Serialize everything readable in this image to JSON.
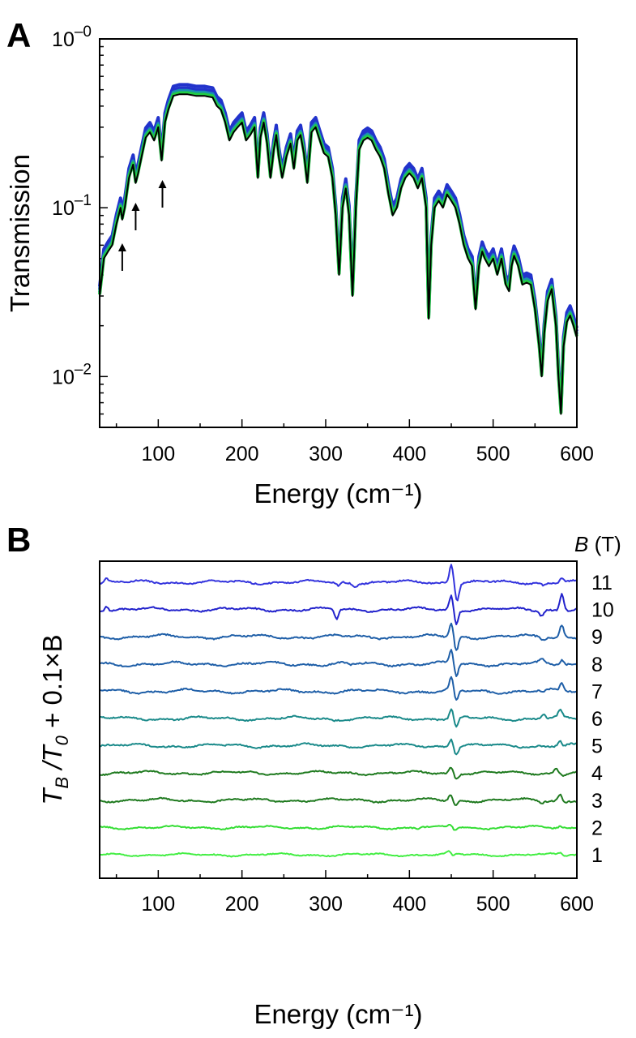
{
  "panels": {
    "a": {
      "letter": "A"
    },
    "b": {
      "letter": "B"
    }
  },
  "chart_data": [
    {
      "type": "line",
      "panel": "A",
      "xlabel": "Energy (cm⁻¹)",
      "ylabel": "Transmission",
      "xlim": [
        30,
        600
      ],
      "ylim": [
        0.005,
        1
      ],
      "yscale": "log",
      "xticks": [
        100,
        200,
        300,
        400,
        500,
        600
      ],
      "yticks": [
        {
          "base": "10",
          "exp": "–2",
          "value": 0.01
        },
        {
          "base": "10",
          "exp": "–1",
          "value": 0.1
        },
        {
          "base": "10",
          "exp": "–0",
          "value": 1
        }
      ],
      "grid": false,
      "band_colors": {
        "top": "#2233cc",
        "middle": "#1a8fb0",
        "lower": "#22cc44",
        "bottom": "#000000"
      },
      "arrows_at_x": [
        57,
        73,
        105
      ],
      "x": [
        30,
        35,
        40,
        45,
        50,
        55,
        57,
        60,
        65,
        70,
        73,
        76,
        80,
        85,
        90,
        95,
        100,
        104,
        108,
        112,
        118,
        125,
        135,
        145,
        155,
        165,
        170,
        175,
        180,
        185,
        190,
        195,
        200,
        205,
        210,
        215,
        219,
        222,
        226,
        230,
        234,
        238,
        241,
        244,
        248,
        253,
        258,
        262,
        266,
        270,
        274,
        278,
        283,
        288,
        293,
        298,
        303,
        308,
        312,
        316,
        320,
        324,
        328,
        332,
        336,
        340,
        345,
        350,
        355,
        360,
        365,
        370,
        375,
        380,
        385,
        390,
        395,
        400,
        405,
        410,
        415,
        420,
        423,
        426,
        430,
        435,
        440,
        445,
        450,
        455,
        460,
        465,
        470,
        475,
        479,
        483,
        487,
        490,
        495,
        500,
        505,
        510,
        515,
        519,
        522,
        525,
        530,
        535,
        540,
        545,
        550,
        555,
        558,
        561,
        565,
        570,
        575,
        578,
        581,
        584,
        588,
        592,
        596,
        600
      ],
      "y": [
        0.03,
        0.05,
        0.055,
        0.06,
        0.08,
        0.1,
        0.085,
        0.1,
        0.15,
        0.18,
        0.14,
        0.16,
        0.2,
        0.26,
        0.28,
        0.25,
        0.3,
        0.19,
        0.32,
        0.38,
        0.46,
        0.47,
        0.47,
        0.46,
        0.46,
        0.45,
        0.4,
        0.38,
        0.32,
        0.25,
        0.28,
        0.3,
        0.32,
        0.25,
        0.27,
        0.3,
        0.15,
        0.26,
        0.32,
        0.24,
        0.15,
        0.22,
        0.27,
        0.2,
        0.15,
        0.2,
        0.24,
        0.17,
        0.25,
        0.27,
        0.21,
        0.14,
        0.28,
        0.3,
        0.25,
        0.21,
        0.2,
        0.15,
        0.09,
        0.04,
        0.1,
        0.13,
        0.09,
        0.03,
        0.1,
        0.22,
        0.25,
        0.26,
        0.25,
        0.22,
        0.2,
        0.17,
        0.12,
        0.09,
        0.1,
        0.13,
        0.15,
        0.16,
        0.15,
        0.13,
        0.15,
        0.1,
        0.022,
        0.06,
        0.1,
        0.11,
        0.1,
        0.12,
        0.11,
        0.1,
        0.08,
        0.06,
        0.05,
        0.045,
        0.025,
        0.045,
        0.055,
        0.05,
        0.045,
        0.05,
        0.04,
        0.05,
        0.035,
        0.032,
        0.045,
        0.052,
        0.045,
        0.035,
        0.036,
        0.035,
        0.025,
        0.015,
        0.01,
        0.018,
        0.028,
        0.033,
        0.02,
        0.01,
        0.006,
        0.015,
        0.021,
        0.023,
        0.02,
        0.017
      ]
    },
    {
      "type": "line",
      "panel": "B",
      "xlabel": "Energy (cm⁻¹)",
      "ylabel_main": "T",
      "ylabel_sub1": "B",
      "ylabel_mid": " /T",
      "ylabel_sub2": "0",
      "ylabel_tail": " + 0.1×B",
      "legend_title": "(T)",
      "legend_title_italic": "B",
      "xlim": [
        30,
        600
      ],
      "xticks": [
        100,
        200,
        300,
        400,
        500,
        600
      ],
      "grid": false,
      "series": [
        {
          "name": "1",
          "offset": 0.1,
          "color": "#44ee44",
          "amp": 0.22,
          "feat": [
            [
              447,
              0.15
            ],
            [
              452,
              -0.1
            ],
            [
              580,
              0.12
            ],
            [
              585,
              -0.08
            ],
            [
              420,
              0.05
            ],
            [
              560,
              -0.06
            ]
          ]
        },
        {
          "name": "2",
          "offset": 0.2,
          "color": "#33dd33",
          "amp": 0.24,
          "feat": [
            [
              449,
              0.15
            ],
            [
              454,
              -0.15
            ],
            [
              410,
              -0.05
            ],
            [
              415,
              0.05
            ],
            [
              580,
              0.1
            ]
          ]
        },
        {
          "name": "3",
          "offset": 0.3,
          "color": "#1f7a1f",
          "amp": 0.28,
          "feat": [
            [
              449,
              0.3
            ],
            [
              455,
              -0.3
            ],
            [
              580,
              0.35
            ],
            [
              585,
              -0.1
            ],
            [
              558,
              -0.12
            ]
          ]
        },
        {
          "name": "4",
          "offset": 0.4,
          "color": "#1f7a1f",
          "amp": 0.28,
          "feat": [
            [
              450,
              0.35
            ],
            [
              456,
              -0.3
            ],
            [
              575,
              0.3
            ],
            [
              585,
              -0.1
            ]
          ]
        },
        {
          "name": "5",
          "offset": 0.5,
          "color": "#1a8a8a",
          "amp": 0.3,
          "feat": [
            [
              450,
              0.45
            ],
            [
              456,
              -0.45
            ],
            [
              580,
              0.25
            ],
            [
              585,
              -0.1
            ]
          ]
        },
        {
          "name": "6",
          "offset": 0.6,
          "color": "#1a8a8a",
          "amp": 0.3,
          "feat": [
            [
              450,
              0.55
            ],
            [
              456,
              -0.55
            ],
            [
              580,
              0.4
            ],
            [
              560,
              0.25
            ],
            [
              310,
              -0.08
            ]
          ]
        },
        {
          "name": "7",
          "offset": 0.7,
          "color": "#1f5fa8",
          "amp": 0.32,
          "feat": [
            [
              450,
              0.7
            ],
            [
              456,
              -0.6
            ],
            [
              582,
              0.45
            ],
            [
              560,
              -0.1
            ]
          ]
        },
        {
          "name": "8",
          "offset": 0.8,
          "color": "#1f5fa8",
          "amp": 0.32,
          "feat": [
            [
              450,
              0.75
            ],
            [
              456,
              -0.7
            ],
            [
              558,
              0.2
            ],
            [
              582,
              0.25
            ],
            [
              330,
              -0.1
            ]
          ]
        },
        {
          "name": "9",
          "offset": 0.9,
          "color": "#1f5fa8",
          "amp": 0.32,
          "feat": [
            [
              450,
              0.8
            ],
            [
              456,
              -0.8
            ],
            [
              582,
              0.7
            ],
            [
              560,
              -0.15
            ]
          ]
        },
        {
          "name": "10",
          "offset": 1.0,
          "color": "#2222cc",
          "amp": 0.3,
          "feat": [
            [
              38,
              0.25
            ],
            [
              450,
              0.8
            ],
            [
              456,
              -0.8
            ],
            [
              313,
              -0.55
            ],
            [
              582,
              0.95
            ],
            [
              558,
              -0.3
            ]
          ]
        },
        {
          "name": "11",
          "offset": 1.1,
          "color": "#3333dd",
          "amp": 0.3,
          "feat": [
            [
              38,
              0.2
            ],
            [
              450,
              1.05
            ],
            [
              457,
              -0.95
            ],
            [
              315,
              -0.2
            ],
            [
              335,
              -0.15
            ],
            [
              582,
              0.25
            ],
            [
              560,
              -0.15
            ]
          ]
        }
      ]
    }
  ]
}
